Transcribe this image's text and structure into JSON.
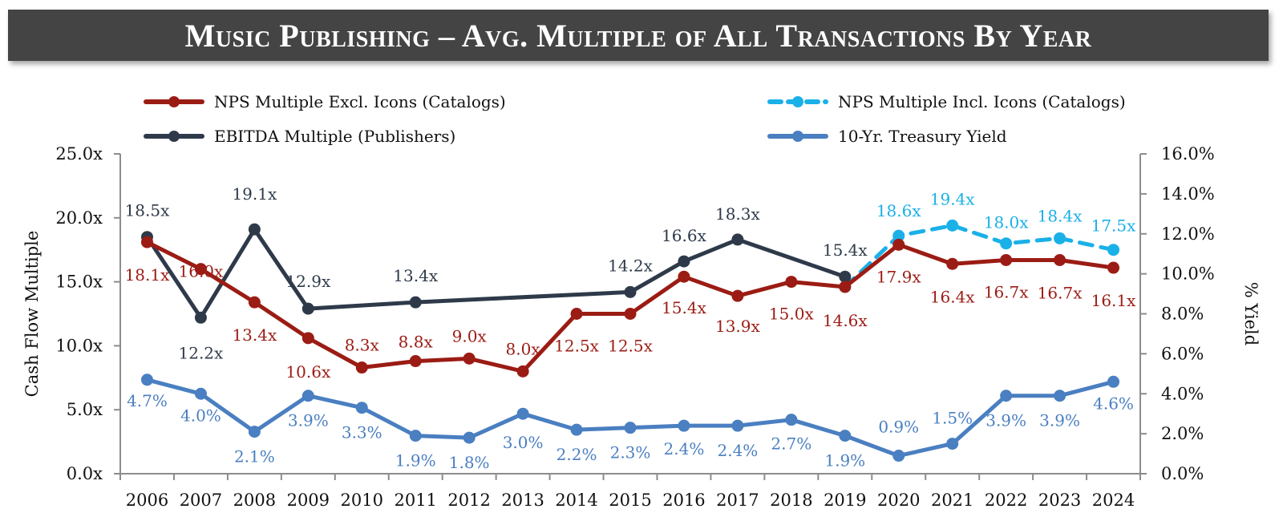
{
  "title": "Music Publishing – Avg. Multiple of All Transactions By Year",
  "chart_data": {
    "type": "line",
    "title": "Music Publishing – Avg. Multiple of All Transactions By Year",
    "categories": [
      "2006",
      "2007",
      "2008",
      "2009",
      "2010",
      "2011",
      "2012",
      "2013",
      "2014",
      "2015",
      "2016",
      "2017",
      "2018",
      "2019",
      "2020",
      "2021",
      "2022",
      "2023",
      "2024"
    ],
    "ylabel": "Cash Flow Multiple",
    "y2label": "% Yield",
    "ylim": [
      0,
      25
    ],
    "y2lim": [
      0,
      16
    ],
    "yticks": [
      "0.0x",
      "5.0x",
      "10.0x",
      "15.0x",
      "20.0x",
      "25.0x"
    ],
    "y2ticks": [
      "0.0%",
      "2.0%",
      "4.0%",
      "6.0%",
      "8.0%",
      "10.0%",
      "12.0%",
      "14.0%",
      "16.0%"
    ],
    "legend_position": "top",
    "series": [
      {
        "name": "NPS Multiple Excl. Icons (Catalogs)",
        "axis": "left",
        "color": "#9b1c14",
        "style": "solid",
        "values": [
          18.1,
          16.0,
          13.4,
          10.6,
          8.3,
          8.8,
          9.0,
          8.0,
          12.5,
          12.5,
          15.4,
          13.9,
          15.0,
          14.6,
          17.9,
          16.4,
          16.7,
          16.7,
          16.1
        ],
        "labels": [
          "18.1x",
          "16.0x",
          "13.4x",
          "10.6x",
          "8.3x",
          "8.8x",
          "9.0x",
          "8.0x",
          "12.5x",
          "12.5x",
          "15.4x",
          "13.9x",
          "15.0x",
          "14.6x",
          "17.9x",
          "16.4x",
          "16.7x",
          "16.7x",
          "16.1x"
        ]
      },
      {
        "name": "NPS Multiple Incl. Icons (Catalogs)",
        "axis": "left",
        "color": "#1ab0e8",
        "style": "dashed",
        "values": [
          null,
          null,
          null,
          null,
          null,
          null,
          null,
          null,
          null,
          null,
          null,
          null,
          null,
          14.6,
          18.6,
          19.4,
          18.0,
          18.4,
          17.5
        ],
        "labels": [
          null,
          null,
          null,
          null,
          null,
          null,
          null,
          null,
          null,
          null,
          null,
          null,
          null,
          null,
          "18.6x",
          "19.4x",
          "18.0x",
          "18.4x",
          "17.5x"
        ]
      },
      {
        "name": "EBITDA Multiple (Publishers)",
        "axis": "left",
        "color": "#2e3a4a",
        "style": "solid",
        "values": [
          18.5,
          12.2,
          19.1,
          12.9,
          null,
          13.4,
          null,
          null,
          null,
          14.2,
          16.6,
          18.3,
          null,
          15.4,
          null,
          null,
          null,
          null,
          null
        ],
        "labels": [
          "18.5x",
          "12.2x",
          "19.1x",
          "12.9x",
          null,
          "13.4x",
          null,
          null,
          null,
          "14.2x",
          "16.6x",
          "18.3x",
          null,
          "15.4x",
          null,
          null,
          null,
          null,
          null
        ]
      },
      {
        "name": "10-Yr. Treasury Yield",
        "axis": "right",
        "color": "#4a7fc1",
        "style": "solid",
        "values": [
          4.7,
          4.0,
          2.1,
          3.9,
          3.3,
          1.9,
          1.8,
          3.0,
          2.2,
          2.3,
          2.4,
          2.4,
          2.7,
          1.9,
          0.9,
          1.5,
          3.9,
          3.9,
          4.6
        ],
        "labels": [
          "4.7%",
          "4.0%",
          "2.1%",
          "3.9%",
          "3.3%",
          "1.9%",
          "1.8%",
          "3.0%",
          "2.2%",
          "2.3%",
          "2.4%",
          "2.4%",
          "2.7%",
          "1.9%",
          "0.9%",
          "1.5%",
          "3.9%",
          "3.9%",
          "4.6%"
        ]
      }
    ]
  }
}
